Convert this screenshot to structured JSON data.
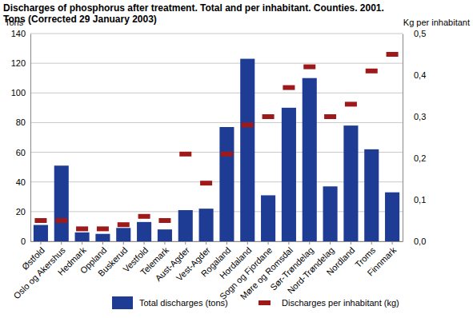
{
  "chart_data": {
    "type": "bar",
    "title": "Discharges of phosphorus after treatment. Total and per inhabitant. Counties. 2001. Tons (Corrected 29 January 2003)",
    "y_label": "Tons",
    "y2_label": "Kg per inhabitant",
    "categories": [
      "Østfold",
      "Oslo og Akershus",
      "Hedmark",
      "Oppland",
      "Buskerud",
      "Vestfold",
      "Telemark",
      "Aust-Agder",
      "Vest-Agder",
      "Rogaland",
      "Hordaland",
      "Sogn og Fjordane",
      "Møre og Romsdal",
      "Sør-Trøndelag",
      "Nord-Trøndelag",
      "Nordland",
      "Troms",
      "Finnmark"
    ],
    "series": [
      {
        "name": "Total discharges (tons)",
        "type": "bar",
        "color": "#1f3c95",
        "values": [
          11,
          51,
          6,
          5,
          9,
          13,
          8,
          21,
          22,
          77,
          123,
          31,
          90,
          110,
          37,
          78,
          62,
          33
        ]
      },
      {
        "name": "Discharges per inhabitant (kg)",
        "type": "scatter",
        "marker": "square",
        "color": "#9e1a1a",
        "axis": "y2",
        "values": [
          0.05,
          0.05,
          0.03,
          0.03,
          0.04,
          0.06,
          0.05,
          0.21,
          0.14,
          0.21,
          0.28,
          0.3,
          0.37,
          0.42,
          0.3,
          0.33,
          0.41,
          0.45
        ]
      }
    ],
    "ylim": [
      0,
      140
    ],
    "yticks": [
      0,
      20,
      40,
      60,
      80,
      100,
      120,
      140
    ],
    "y2lim": [
      0,
      0.5
    ],
    "y2ticks": [
      {
        "value": 0,
        "label": "0,0"
      },
      {
        "value": 0.1,
        "label": "0,1"
      },
      {
        "value": 0.2,
        "label": "0,2"
      },
      {
        "value": 0.3,
        "label": "0,3"
      },
      {
        "value": 0.4,
        "label": "0,4"
      },
      {
        "value": 0.5,
        "label": "0,5"
      }
    ],
    "grid": true,
    "legend": "bottom"
  }
}
